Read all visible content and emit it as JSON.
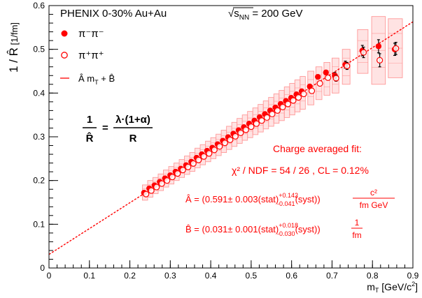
{
  "chart_data": {
    "type": "scatter",
    "title": "PHENIX 0-30%  Au+Au",
    "energy_label": {
      "prefix": "√s",
      "subscript": "NN",
      "suffix": " = 200 GeV"
    },
    "xlabel": {
      "main": "m",
      "subscript": "T",
      "units": " [GeV/c",
      "sup": "2",
      "close": "]"
    },
    "ylabel": {
      "main": "1 / R̂",
      "units": " [1/fm]"
    },
    "xlim": [
      0,
      0.9
    ],
    "ylim": [
      0,
      0.6
    ],
    "x_ticks": [
      "0",
      "0.1",
      "0.2",
      "0.3",
      "0.4",
      "0.5",
      "0.6",
      "0.7",
      "0.8",
      "0.9"
    ],
    "y_ticks": [
      "0",
      "0.1",
      "0.2",
      "0.3",
      "0.4",
      "0.5",
      "0.6"
    ],
    "x_tick_values": [
      0,
      0.1,
      0.2,
      0.3,
      0.4,
      0.5,
      0.6,
      0.7,
      0.8,
      0.9
    ],
    "y_tick_values": [
      0,
      0.1,
      0.2,
      0.3,
      0.4,
      0.5,
      0.6
    ],
    "legend": {
      "placement": "top-left",
      "entries": [
        {
          "label": "π⁻π⁻",
          "marker": "filled-circle"
        },
        {
          "label": "π⁺π⁺",
          "marker": "open-circle"
        },
        {
          "label": "Â m",
          "sub": "T",
          "tail": " + B̂",
          "marker": "line"
        }
      ]
    },
    "formula": {
      "lhs_num": "1",
      "lhs_den": "R̂",
      "eq": "=",
      "rhs_num": "λ·(1+α)",
      "rhs_den": "R"
    },
    "fit_annotations": [
      "Charge averaged  fit:",
      "χ² / NDF = 54 / 26 , CL = 0.12%",
      "Â = (0.591± 0.003(stat)+0.142-0.041(syst)) c²/fm GeV",
      "B̂ = (0.031± 0.001(stat)+0.018-0.030(syst)) 1/fm"
    ],
    "fit_A_parts": {
      "pre": "Â = (0.591± 0.003(stat)",
      "sup": "+0.142",
      "sub": "-0.041",
      "post": "(syst))",
      "frac_num": "c²",
      "frac_den": "fm GeV"
    },
    "fit_B_parts": {
      "pre": "B̂ = (0.031± 0.001(stat)",
      "sup": "+0.018",
      "sub": "-0.030",
      "post": "(syst))",
      "frac_num": "1",
      "frac_den": "fm"
    },
    "fit": {
      "A": 0.591,
      "B": 0.031
    },
    "series": [
      {
        "name": "π⁻π⁻",
        "marker": "filled",
        "x": [
          0.235,
          0.248,
          0.261,
          0.274,
          0.287,
          0.3,
          0.313,
          0.326,
          0.339,
          0.352,
          0.365,
          0.378,
          0.391,
          0.404,
          0.417,
          0.43,
          0.443,
          0.456,
          0.469,
          0.482,
          0.495,
          0.508,
          0.521,
          0.534,
          0.547,
          0.56,
          0.573,
          0.586,
          0.599,
          0.612,
          0.625,
          0.645,
          0.665,
          0.685,
          0.707,
          0.733,
          0.775,
          0.815,
          0.855
        ],
        "y": [
          0.172,
          0.182,
          0.189,
          0.197,
          0.205,
          0.212,
          0.22,
          0.227,
          0.235,
          0.243,
          0.252,
          0.26,
          0.268,
          0.275,
          0.283,
          0.291,
          0.299,
          0.307,
          0.315,
          0.322,
          0.33,
          0.337,
          0.345,
          0.352,
          0.36,
          0.367,
          0.375,
          0.382,
          0.389,
          0.397,
          0.404,
          0.415,
          0.437,
          0.447,
          0.44,
          0.465,
          0.497,
          0.507,
          0.5
        ],
        "yerr": [
          0.003,
          0.003,
          0.003,
          0.003,
          0.003,
          0.003,
          0.003,
          0.003,
          0.003,
          0.003,
          0.003,
          0.003,
          0.003,
          0.003,
          0.003,
          0.003,
          0.003,
          0.003,
          0.003,
          0.003,
          0.003,
          0.003,
          0.003,
          0.003,
          0.003,
          0.003,
          0.003,
          0.003,
          0.003,
          0.003,
          0.003,
          0.004,
          0.006,
          0.006,
          0.007,
          0.008,
          0.012,
          0.015,
          0.014
        ]
      },
      {
        "name": "π⁺π⁺",
        "marker": "open",
        "x": [
          0.24,
          0.253,
          0.266,
          0.279,
          0.292,
          0.305,
          0.318,
          0.331,
          0.344,
          0.357,
          0.37,
          0.383,
          0.396,
          0.409,
          0.422,
          0.435,
          0.448,
          0.461,
          0.474,
          0.487,
          0.5,
          0.513,
          0.526,
          0.539,
          0.552,
          0.565,
          0.578,
          0.591,
          0.604,
          0.617,
          0.63,
          0.65,
          0.67,
          0.69,
          0.71,
          0.737,
          0.778,
          0.818,
          0.858
        ],
        "y": [
          0.169,
          0.177,
          0.185,
          0.193,
          0.2,
          0.208,
          0.216,
          0.224,
          0.231,
          0.239,
          0.247,
          0.255,
          0.262,
          0.27,
          0.278,
          0.286,
          0.293,
          0.301,
          0.309,
          0.316,
          0.323,
          0.33,
          0.337,
          0.344,
          0.352,
          0.36,
          0.368,
          0.375,
          0.383,
          0.39,
          0.398,
          0.405,
          0.422,
          0.435,
          0.434,
          0.462,
          0.493,
          0.475,
          0.502
        ],
        "yerr": [
          0.003,
          0.003,
          0.003,
          0.003,
          0.003,
          0.003,
          0.003,
          0.003,
          0.003,
          0.003,
          0.003,
          0.003,
          0.003,
          0.003,
          0.003,
          0.003,
          0.003,
          0.003,
          0.003,
          0.003,
          0.003,
          0.003,
          0.003,
          0.003,
          0.003,
          0.003,
          0.003,
          0.003,
          0.003,
          0.003,
          0.003,
          0.004,
          0.006,
          0.006,
          0.007,
          0.008,
          0.012,
          0.015,
          0.014
        ]
      }
    ],
    "systematic_boxes": [
      {
        "x": 0.2375,
        "half_width": 0.0065,
        "ylow": 0.155,
        "yhigh": 0.19
      },
      {
        "x": 0.2505,
        "half_width": 0.0065,
        "ylow": 0.162,
        "yhigh": 0.2
      },
      {
        "x": 0.2635,
        "half_width": 0.0065,
        "ylow": 0.17,
        "yhigh": 0.207
      },
      {
        "x": 0.2765,
        "half_width": 0.0065,
        "ylow": 0.177,
        "yhigh": 0.215
      },
      {
        "x": 0.2895,
        "half_width": 0.0065,
        "ylow": 0.185,
        "yhigh": 0.224
      },
      {
        "x": 0.3025,
        "half_width": 0.0065,
        "ylow": 0.192,
        "yhigh": 0.232
      },
      {
        "x": 0.3155,
        "half_width": 0.0065,
        "ylow": 0.2,
        "yhigh": 0.24
      },
      {
        "x": 0.3285,
        "half_width": 0.0065,
        "ylow": 0.207,
        "yhigh": 0.248
      },
      {
        "x": 0.3415,
        "half_width": 0.0065,
        "ylow": 0.214,
        "yhigh": 0.256
      },
      {
        "x": 0.3545,
        "half_width": 0.0065,
        "ylow": 0.221,
        "yhigh": 0.264
      },
      {
        "x": 0.3675,
        "half_width": 0.0065,
        "ylow": 0.229,
        "yhigh": 0.274
      },
      {
        "x": 0.3805,
        "half_width": 0.0065,
        "ylow": 0.236,
        "yhigh": 0.282
      },
      {
        "x": 0.3935,
        "half_width": 0.0065,
        "ylow": 0.243,
        "yhigh": 0.29
      },
      {
        "x": 0.4065,
        "half_width": 0.0065,
        "ylow": 0.25,
        "yhigh": 0.298
      },
      {
        "x": 0.4195,
        "half_width": 0.0065,
        "ylow": 0.257,
        "yhigh": 0.306
      },
      {
        "x": 0.4325,
        "half_width": 0.0065,
        "ylow": 0.264,
        "yhigh": 0.315
      },
      {
        "x": 0.4455,
        "half_width": 0.0065,
        "ylow": 0.271,
        "yhigh": 0.324
      },
      {
        "x": 0.4585,
        "half_width": 0.0065,
        "ylow": 0.278,
        "yhigh": 0.333
      },
      {
        "x": 0.4715,
        "half_width": 0.0065,
        "ylow": 0.285,
        "yhigh": 0.342
      },
      {
        "x": 0.4845,
        "half_width": 0.0065,
        "ylow": 0.292,
        "yhigh": 0.35
      },
      {
        "x": 0.4975,
        "half_width": 0.0065,
        "ylow": 0.298,
        "yhigh": 0.358
      },
      {
        "x": 0.5105,
        "half_width": 0.0065,
        "ylow": 0.305,
        "yhigh": 0.366
      },
      {
        "x": 0.5235,
        "half_width": 0.0065,
        "ylow": 0.311,
        "yhigh": 0.374
      },
      {
        "x": 0.5365,
        "half_width": 0.0065,
        "ylow": 0.318,
        "yhigh": 0.382
      },
      {
        "x": 0.5495,
        "half_width": 0.0065,
        "ylow": 0.324,
        "yhigh": 0.39
      },
      {
        "x": 0.5625,
        "half_width": 0.0065,
        "ylow": 0.331,
        "yhigh": 0.398
      },
      {
        "x": 0.5755,
        "half_width": 0.0065,
        "ylow": 0.337,
        "yhigh": 0.406
      },
      {
        "x": 0.5885,
        "half_width": 0.0065,
        "ylow": 0.344,
        "yhigh": 0.414
      },
      {
        "x": 0.6015,
        "half_width": 0.0065,
        "ylow": 0.35,
        "yhigh": 0.422
      },
      {
        "x": 0.6145,
        "half_width": 0.0065,
        "ylow": 0.357,
        "yhigh": 0.43
      },
      {
        "x": 0.6275,
        "half_width": 0.0065,
        "ylow": 0.363,
        "yhigh": 0.438
      },
      {
        "x": 0.6475,
        "half_width": 0.0075,
        "ylow": 0.373,
        "yhigh": 0.45
      },
      {
        "x": 0.6675,
        "half_width": 0.0075,
        "ylow": 0.385,
        "yhigh": 0.46
      },
      {
        "x": 0.6875,
        "half_width": 0.0075,
        "ylow": 0.395,
        "yhigh": 0.47
      },
      {
        "x": 0.7085,
        "half_width": 0.0085,
        "ylow": 0.4,
        "yhigh": 0.48
      },
      {
        "x": 0.735,
        "half_width": 0.0095,
        "ylow": 0.42,
        "yhigh": 0.5
      },
      {
        "x": 0.776,
        "half_width": 0.013,
        "ylow": 0.445,
        "yhigh": 0.545
      },
      {
        "x": 0.815,
        "half_width": 0.017,
        "ylow": 0.42,
        "yhigh": 0.575
      },
      {
        "x": 0.8565,
        "half_width": 0.0175,
        "ylow": 0.435,
        "yhigh": 0.57
      }
    ],
    "colors": {
      "marker": "#ff0000",
      "band_fill": "#ffcccc",
      "band_stroke": "#ff9999",
      "axis": "#000000",
      "fit_text": "#ff0000"
    }
  }
}
